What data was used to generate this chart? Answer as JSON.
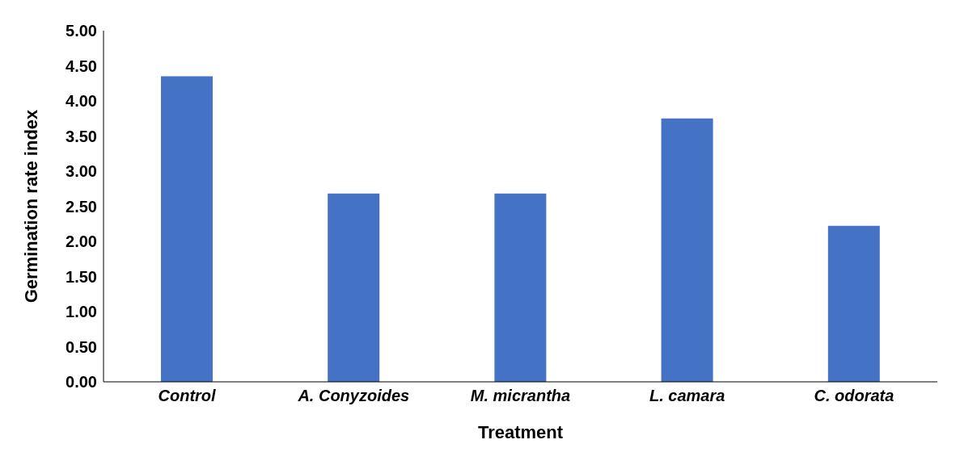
{
  "chart_data": {
    "type": "bar",
    "xlabel": "Treatment",
    "ylabel": "Germination rate index",
    "categories": [
      "Control",
      "A. Conyzoides",
      "M. micrantha",
      "L. camara",
      "C. odorata"
    ],
    "values": [
      4.35,
      2.68,
      2.68,
      3.75,
      2.22
    ],
    "color": "#4472c4",
    "ylim": [
      0,
      5
    ],
    "yticks": [
      {
        "value": 0,
        "label": "0.00"
      },
      {
        "value": 0.5,
        "label": "0.50"
      },
      {
        "value": 1,
        "label": "1.00"
      },
      {
        "value": 1.5,
        "label": "1.50"
      },
      {
        "value": 2,
        "label": "2.00"
      },
      {
        "value": 2.5,
        "label": "2.50"
      },
      {
        "value": 3,
        "label": "3.00"
      },
      {
        "value": 3.5,
        "label": "3.50"
      },
      {
        "value": 4,
        "label": "4.00"
      },
      {
        "value": 4.5,
        "label": "4.50"
      },
      {
        "value": 5,
        "label": "5.00"
      }
    ],
    "grid": false,
    "legend": false
  }
}
